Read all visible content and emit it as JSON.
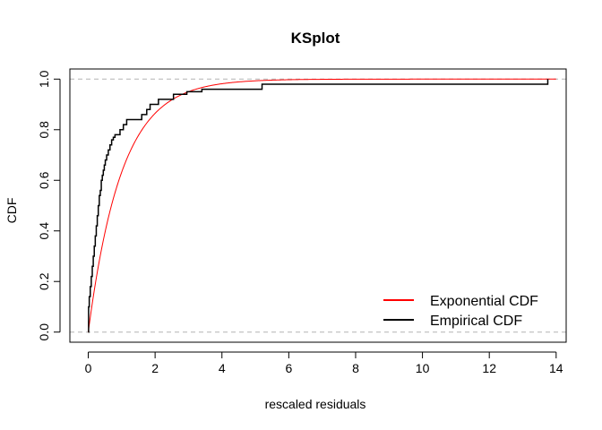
{
  "chart_data": {
    "type": "line",
    "title": "KSplot",
    "xlabel": "rescaled residuals",
    "ylabel": "CDF",
    "xlim": [
      -0.55,
      14.3
    ],
    "ylim": [
      -0.04,
      1.04
    ],
    "x_ticks": [
      0,
      2,
      4,
      6,
      8,
      10,
      12,
      14
    ],
    "y_ticks": [
      0.0,
      0.2,
      0.4,
      0.6,
      0.8,
      1.0
    ],
    "x_tick_labels": [
      "0",
      "2",
      "4",
      "6",
      "8",
      "10",
      "12",
      "14"
    ],
    "y_tick_labels": [
      "0.0",
      "0.2",
      "0.4",
      "0.6",
      "0.8",
      "1.0"
    ],
    "reference_lines": [
      0,
      1
    ],
    "legend_position": "bottom-right",
    "legend_labels": [
      "Exponential CDF",
      "Empirical CDF"
    ],
    "series": [
      {
        "name": "Exponential CDF",
        "color": "#ff0000",
        "function": "1 - exp(-x)",
        "x_range": [
          0,
          14
        ]
      },
      {
        "name": "Empirical CDF",
        "color": "#000000",
        "x": [
          0.0,
          0.01,
          0.03,
          0.06,
          0.09,
          0.12,
          0.15,
          0.18,
          0.21,
          0.24,
          0.27,
          0.3,
          0.33,
          0.36,
          0.39,
          0.42,
          0.45,
          0.48,
          0.51,
          0.55,
          0.6,
          0.65,
          0.7,
          0.75,
          0.8,
          0.85,
          0.95,
          1.05,
          1.15,
          1.3,
          1.6,
          1.75,
          1.85,
          2.0,
          2.1,
          2.3,
          2.55,
          2.7,
          2.95,
          3.1,
          3.4,
          5.2,
          13.75
        ],
        "y": [
          0.0,
          0.1,
          0.14,
          0.18,
          0.22,
          0.26,
          0.3,
          0.34,
          0.38,
          0.42,
          0.46,
          0.5,
          0.54,
          0.56,
          0.6,
          0.62,
          0.64,
          0.66,
          0.68,
          0.7,
          0.72,
          0.74,
          0.76,
          0.77,
          0.78,
          0.78,
          0.8,
          0.82,
          0.84,
          0.84,
          0.86,
          0.88,
          0.9,
          0.9,
          0.92,
          0.92,
          0.94,
          0.94,
          0.95,
          0.95,
          0.96,
          0.98,
          1.0
        ]
      }
    ]
  }
}
